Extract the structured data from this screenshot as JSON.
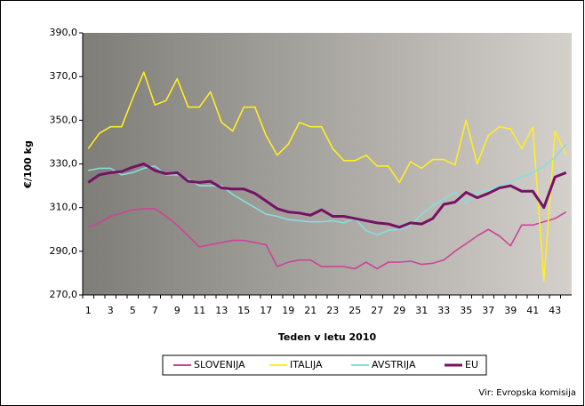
{
  "chart_data": {
    "type": "line",
    "y_label": "€/100 kg",
    "x_label": "Teden v letu 2010",
    "source": "Vir: Evropska komisija",
    "categories": [
      1,
      null,
      3,
      null,
      5,
      null,
      7,
      null,
      9,
      null,
      11,
      null,
      13,
      null,
      15,
      null,
      17,
      null,
      19,
      null,
      21,
      null,
      23,
      null,
      25,
      null,
      27,
      null,
      29,
      null,
      31,
      null,
      33,
      null,
      35,
      null,
      37,
      null,
      39,
      null,
      41,
      null,
      43,
      null
    ],
    "ylim": [
      270,
      390
    ],
    "yticks": [
      {
        "value": 270,
        "label": "270,0"
      },
      {
        "value": 290,
        "label": "290,0"
      },
      {
        "value": 310,
        "label": "310,0"
      },
      {
        "value": 330,
        "label": "330,0"
      },
      {
        "value": 350,
        "label": "350,0"
      },
      {
        "value": 370,
        "label": "370,0"
      },
      {
        "value": 390,
        "label": "390,0"
      }
    ],
    "series": [
      {
        "name": "SLOVENIJA",
        "color": "#cc4499",
        "values": [
          301,
          303,
          306,
          307.5,
          309,
          309.5,
          309.5,
          306,
          302,
          297,
          292,
          293,
          294,
          295,
          295,
          294,
          293,
          283,
          285,
          286,
          286,
          283,
          283,
          283,
          282,
          285,
          282,
          285,
          285,
          285.5,
          284,
          284.5,
          286,
          290,
          293.5,
          297,
          300,
          297,
          292.5,
          302,
          302,
          303.5,
          305,
          308
        ]
      },
      {
        "name": "ITALIJA",
        "color": "#ffee22",
        "values": [
          337,
          344,
          347,
          347,
          360,
          372,
          357,
          359,
          369,
          356,
          356,
          363,
          349,
          345,
          356,
          356,
          343,
          334,
          339,
          349,
          347,
          347,
          337,
          331.5,
          331.5,
          334,
          329,
          329,
          321.5,
          331,
          328,
          332,
          332,
          329.5,
          350,
          330,
          343,
          347,
          346,
          337,
          347,
          276.5,
          345,
          334
        ]
      },
      {
        "name": "AVSTRIJA",
        "color": "#88dddd",
        "values": [
          327,
          328,
          328,
          325,
          326,
          328,
          329,
          325,
          325,
          323,
          320,
          320,
          320,
          316,
          313,
          310,
          307,
          306,
          304.5,
          304,
          303.5,
          303.5,
          304,
          303,
          305,
          299.5,
          297.5,
          299.5,
          300,
          302,
          307,
          311,
          314,
          317,
          312,
          317,
          318,
          320,
          322,
          324,
          326,
          329,
          333,
          339
        ]
      },
      {
        "name": "EU",
        "color": "#771166",
        "values": [
          321.5,
          325,
          326,
          326.5,
          328.5,
          330,
          327,
          325.5,
          326,
          322,
          321.5,
          322,
          319,
          318.5,
          318.5,
          316.5,
          313,
          309.5,
          308,
          307.5,
          306.5,
          309,
          306,
          306,
          305,
          304,
          303,
          302.5,
          301,
          303,
          302.5,
          305,
          311.5,
          312.5,
          317,
          314.5,
          316.5,
          319,
          320,
          317.5,
          317.5,
          310,
          324,
          326
        ]
      }
    ]
  }
}
